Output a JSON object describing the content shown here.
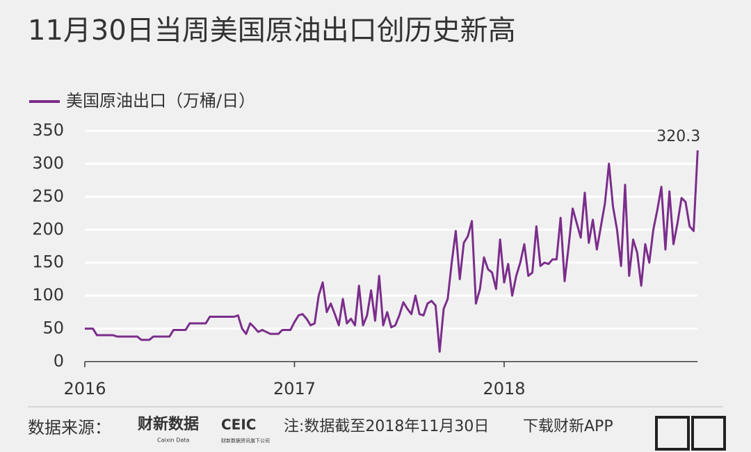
{
  "chart_data": {
    "type": "line",
    "title": "11月30日当周美国原油出口创历史新高",
    "categories": [
      "2016",
      null,
      null,
      null,
      null,
      null,
      null,
      null,
      null,
      null,
      null,
      null,
      null,
      null,
      null,
      null,
      null,
      null,
      null,
      null,
      null,
      null,
      null,
      null,
      null,
      null,
      null,
      null,
      null,
      null,
      null,
      null,
      null,
      null,
      null,
      null,
      null,
      null,
      null,
      null,
      null,
      null,
      null,
      null,
      null,
      null,
      null,
      null,
      null,
      null,
      null,
      null,
      "2017",
      null,
      null,
      null,
      null,
      null,
      null,
      null,
      null,
      null,
      null,
      null,
      null,
      null,
      null,
      null,
      null,
      null,
      null,
      null,
      null,
      null,
      null,
      null,
      null,
      null,
      null,
      null,
      null,
      null,
      null,
      null,
      null,
      null,
      null,
      null,
      null,
      null,
      null,
      null,
      null,
      null,
      null,
      null,
      null,
      null,
      null,
      null,
      null,
      null,
      null,
      null,
      "2018",
      null,
      null,
      null,
      null,
      null,
      null,
      null,
      null,
      null,
      null,
      null,
      null,
      null,
      null,
      null,
      null,
      null,
      null,
      null,
      null,
      null,
      null,
      null,
      null,
      null,
      null,
      null,
      null,
      null,
      null,
      null,
      null,
      null,
      null,
      null,
      null,
      null,
      null,
      null,
      null,
      null,
      null,
      null,
      null,
      null,
      null,
      null,
      null
    ],
    "series": [
      {
        "name": "美国原油出口（万桶/日）",
        "color": "#7b2d8b",
        "values": [
          50,
          50,
          50,
          40,
          40,
          40,
          40,
          40,
          38,
          38,
          38,
          38,
          38,
          38,
          33,
          33,
          33,
          38,
          38,
          38,
          38,
          38,
          48,
          48,
          48,
          48,
          58,
          58,
          58,
          58,
          58,
          68,
          68,
          68,
          68,
          68,
          68,
          68,
          70,
          50,
          42,
          58,
          52,
          45,
          48,
          45,
          42,
          42,
          42,
          48,
          48,
          48,
          60,
          70,
          72,
          65,
          55,
          58,
          100,
          120,
          75,
          88,
          72,
          55,
          95,
          58,
          65,
          55,
          115,
          55,
          70,
          108,
          62,
          130,
          55,
          75,
          52,
          55,
          70,
          90,
          80,
          72,
          100,
          72,
          70,
          88,
          92,
          85,
          15,
          80,
          95,
          150,
          198,
          125,
          180,
          190,
          213,
          88,
          110,
          158,
          140,
          135,
          110,
          185,
          120,
          148,
          100,
          130,
          150,
          178,
          130,
          135,
          205,
          145,
          150,
          148,
          155,
          155,
          218,
          122,
          175,
          232,
          210,
          188,
          256,
          180,
          215,
          170,
          205,
          240,
          300,
          235,
          200,
          145,
          268,
          130,
          185,
          165,
          115,
          178,
          150,
          200,
          230,
          265,
          170,
          258,
          178,
          210,
          248,
          242,
          205,
          198,
          320.3
        ]
      }
    ],
    "ylim": [
      0,
      350
    ],
    "yticks": [
      0,
      50,
      100,
      150,
      200,
      250,
      300,
      350
    ],
    "grid": true
  },
  "footer": {
    "source_label": "数据来源：",
    "brand": "财新数据",
    "brand_en": "Caixin Data",
    "ceic": "CEIC",
    "ceic_sub": "财新数据资讯旗下公司",
    "note": "注:数据截至2018年11月30日",
    "download": "下载财新APP"
  }
}
